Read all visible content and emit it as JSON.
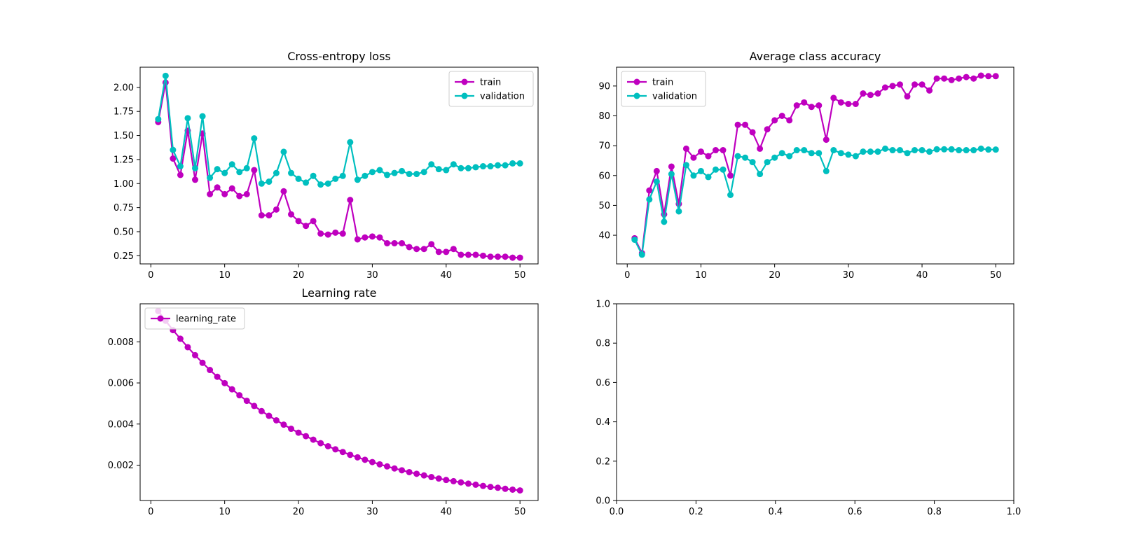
{
  "chart_data": [
    {
      "type": "line",
      "title": "Cross-entropy loss",
      "xlabel": "",
      "ylabel": "",
      "xlim": [
        -1.45,
        52.45
      ],
      "ylim": [
        0.165,
        2.21
      ],
      "xticks": [
        0,
        10,
        20,
        30,
        40,
        50
      ],
      "yticks": [
        0.25,
        0.5,
        0.75,
        1.0,
        1.25,
        1.5,
        1.75,
        2.0
      ],
      "ytick_labels": [
        "0.25",
        "0.50",
        "0.75",
        "1.00",
        "1.25",
        "1.50",
        "1.75",
        "2.00"
      ],
      "xtick_labels": [
        "0",
        "10",
        "20",
        "30",
        "40",
        "50"
      ],
      "legend_position": "upper right",
      "grid": false,
      "series": [
        {
          "name": "train",
          "color": "#bf00bf",
          "x": [
            1,
            2,
            3,
            4,
            5,
            6,
            7,
            8,
            9,
            10,
            11,
            12,
            13,
            14,
            15,
            16,
            17,
            18,
            19,
            20,
            21,
            22,
            23,
            24,
            25,
            26,
            27,
            28,
            29,
            30,
            31,
            32,
            33,
            34,
            35,
            36,
            37,
            38,
            39,
            40,
            41,
            42,
            43,
            44,
            45,
            46,
            47,
            48,
            49,
            50
          ],
          "y": [
            1.64,
            2.05,
            1.26,
            1.09,
            1.55,
            1.04,
            1.52,
            0.89,
            0.96,
            0.89,
            0.95,
            0.87,
            0.89,
            1.14,
            0.67,
            0.67,
            0.73,
            0.92,
            0.68,
            0.61,
            0.56,
            0.61,
            0.48,
            0.47,
            0.49,
            0.48,
            0.83,
            0.42,
            0.44,
            0.45,
            0.44,
            0.38,
            0.38,
            0.38,
            0.34,
            0.32,
            0.32,
            0.37,
            0.29,
            0.29,
            0.32,
            0.26,
            0.26,
            0.26,
            0.25,
            0.24,
            0.24,
            0.24,
            0.23,
            0.23
          ]
        },
        {
          "name": "validation",
          "color": "#00bfbf",
          "x": [
            1,
            2,
            3,
            4,
            5,
            6,
            7,
            8,
            9,
            10,
            11,
            12,
            13,
            14,
            15,
            16,
            17,
            18,
            19,
            20,
            21,
            22,
            23,
            24,
            25,
            26,
            27,
            28,
            29,
            30,
            31,
            32,
            33,
            34,
            35,
            36,
            37,
            38,
            39,
            40,
            41,
            42,
            43,
            44,
            45,
            46,
            47,
            48,
            49,
            50
          ],
          "y": [
            1.67,
            2.12,
            1.35,
            1.18,
            1.68,
            1.16,
            1.7,
            1.06,
            1.15,
            1.11,
            1.2,
            1.12,
            1.16,
            1.47,
            1.0,
            1.02,
            1.11,
            1.33,
            1.11,
            1.05,
            1.01,
            1.08,
            0.99,
            1.0,
            1.05,
            1.08,
            1.43,
            1.04,
            1.08,
            1.12,
            1.14,
            1.09,
            1.11,
            1.13,
            1.1,
            1.1,
            1.12,
            1.2,
            1.15,
            1.14,
            1.2,
            1.16,
            1.16,
            1.17,
            1.18,
            1.18,
            1.19,
            1.19,
            1.21,
            1.21
          ]
        }
      ]
    },
    {
      "type": "line",
      "title": "Average class accuracy",
      "xlabel": "",
      "ylabel": "",
      "xlim": [
        -1.45,
        52.45
      ],
      "ylim": [
        30.4,
        96.3
      ],
      "xticks": [
        0,
        10,
        20,
        30,
        40,
        50
      ],
      "yticks": [
        40,
        50,
        60,
        70,
        80,
        90
      ],
      "ytick_labels": [
        "40",
        "50",
        "60",
        "70",
        "80",
        "90"
      ],
      "xtick_labels": [
        "0",
        "10",
        "20",
        "30",
        "40",
        "50"
      ],
      "legend_position": "upper left",
      "grid": false,
      "series": [
        {
          "name": "train",
          "color": "#bf00bf",
          "x": [
            1,
            2,
            3,
            4,
            5,
            6,
            7,
            8,
            9,
            10,
            11,
            12,
            13,
            14,
            15,
            16,
            17,
            18,
            19,
            20,
            21,
            22,
            23,
            24,
            25,
            26,
            27,
            28,
            29,
            30,
            31,
            32,
            33,
            34,
            35,
            36,
            37,
            38,
            39,
            40,
            41,
            42,
            43,
            44,
            45,
            46,
            47,
            48,
            49,
            50
          ],
          "y": [
            39.0,
            34.0,
            55.0,
            61.5,
            47.0,
            63.0,
            50.5,
            69.0,
            66.0,
            68.0,
            66.5,
            68.5,
            68.5,
            60.0,
            77.0,
            77.0,
            74.5,
            69.0,
            75.5,
            78.5,
            80.0,
            78.5,
            83.5,
            84.5,
            83.0,
            83.5,
            72.0,
            86.0,
            84.5,
            84.0,
            84.0,
            87.5,
            87.0,
            87.5,
            89.5,
            90.0,
            90.5,
            86.5,
            90.5,
            90.5,
            88.5,
            92.5,
            92.5,
            92.0,
            92.5,
            93.0,
            92.5,
            93.5,
            93.3,
            93.3
          ]
        },
        {
          "name": "validation",
          "color": "#00bfbf",
          "x": [
            1,
            2,
            3,
            4,
            5,
            6,
            7,
            8,
            9,
            10,
            11,
            12,
            13,
            14,
            15,
            16,
            17,
            18,
            19,
            20,
            21,
            22,
            23,
            24,
            25,
            26,
            27,
            28,
            29,
            30,
            31,
            32,
            33,
            34,
            35,
            36,
            37,
            38,
            39,
            40,
            41,
            42,
            43,
            44,
            45,
            46,
            47,
            48,
            49,
            50
          ],
          "y": [
            38.5,
            33.5,
            52.0,
            58.0,
            44.5,
            60.5,
            48.0,
            63.5,
            60.0,
            61.5,
            59.5,
            62.0,
            62.0,
            53.5,
            66.5,
            66.0,
            64.5,
            60.5,
            64.5,
            66.0,
            67.5,
            66.5,
            68.5,
            68.5,
            67.5,
            67.5,
            61.5,
            68.5,
            67.5,
            67.0,
            66.5,
            68.0,
            68.0,
            68.0,
            69.0,
            68.5,
            68.5,
            67.5,
            68.5,
            68.5,
            68.0,
            68.8,
            68.8,
            68.8,
            68.5,
            68.5,
            68.5,
            69.0,
            68.7,
            68.7
          ]
        }
      ]
    },
    {
      "type": "line",
      "title": "Learning rate",
      "xlabel": "",
      "ylabel": "",
      "xlim": [
        -1.45,
        52.45
      ],
      "ylim": [
        0.00028,
        0.00985
      ],
      "xticks": [
        0,
        10,
        20,
        30,
        40,
        50
      ],
      "yticks": [
        0.002,
        0.004,
        0.006,
        0.008
      ],
      "ytick_labels": [
        "0.002",
        "0.004",
        "0.006",
        "0.008"
      ],
      "xtick_labels": [
        "0",
        "10",
        "20",
        "30",
        "40",
        "50"
      ],
      "legend_position": "upper left",
      "grid": false,
      "series": [
        {
          "name": "learning_rate",
          "color": "#bf00bf",
          "x": [
            1,
            2,
            3,
            4,
            5,
            6,
            7,
            8,
            9,
            10,
            11,
            12,
            13,
            14,
            15,
            16,
            17,
            18,
            19,
            20,
            21,
            22,
            23,
            24,
            25,
            26,
            27,
            28,
            29,
            30,
            31,
            32,
            33,
            34,
            35,
            36,
            37,
            38,
            39,
            40,
            41,
            42,
            43,
            44,
            45,
            46,
            47,
            48,
            49,
            50
          ],
          "y": [
            0.0095,
            0.009025,
            0.00857,
            0.00815,
            0.00774,
            0.00735,
            0.00698,
            0.00663,
            0.0063,
            0.00599,
            0.00569,
            0.0054,
            0.00513,
            0.00488,
            0.00463,
            0.0044,
            0.00418,
            0.00397,
            0.00377,
            0.00358,
            0.00341,
            0.00324,
            0.00307,
            0.00292,
            0.00277,
            0.00264,
            0.0025,
            0.00238,
            0.00226,
            0.00215,
            0.00204,
            0.00194,
            0.00184,
            0.00175,
            0.00166,
            0.00158,
            0.0015,
            0.00142,
            0.00135,
            0.00128,
            0.00122,
            0.00116,
            0.0011,
            0.00105,
            0.00099,
            0.00094,
            0.0009,
            0.00085,
            0.00081,
            0.00077
          ]
        }
      ]
    },
    {
      "type": "line",
      "title": "",
      "xlabel": "",
      "ylabel": "",
      "xlim": [
        0,
        1
      ],
      "ylim": [
        0,
        1
      ],
      "xticks": [
        0,
        0.2,
        0.4,
        0.6,
        0.8,
        1.0
      ],
      "yticks": [
        0,
        0.2,
        0.4,
        0.6,
        0.8,
        1.0
      ],
      "xtick_labels": [
        "0.0",
        "0.2",
        "0.4",
        "0.6",
        "0.8",
        "1.0"
      ],
      "ytick_labels": [
        "0.0",
        "0.2",
        "0.4",
        "0.6",
        "0.8",
        "1.0"
      ],
      "legend_position": "",
      "grid": false,
      "series": []
    }
  ]
}
